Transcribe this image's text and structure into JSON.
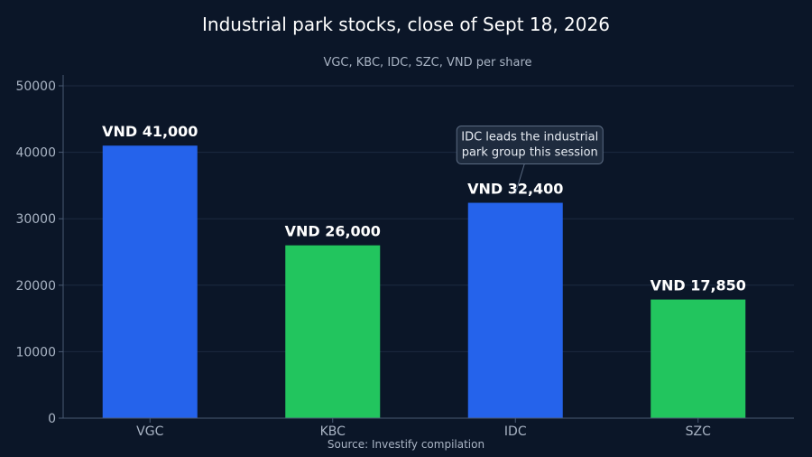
{
  "chart_data": {
    "type": "bar",
    "title": "Industrial park stocks, close of Sept 18, 2026",
    "subtitle": "VGC, KBC, IDC, SZC, VND per share",
    "source": "Source: Investify compilation",
    "categories": [
      "VGC",
      "KBC",
      "IDC",
      "SZC"
    ],
    "values": [
      41000,
      26000,
      32400,
      17850
    ],
    "value_labels": [
      "VND 41,000",
      "VND 26,000",
      "VND 32,400",
      "VND 17,850"
    ],
    "bar_colors": [
      "#2563eb",
      "#22c55e",
      "#2563eb",
      "#22c55e"
    ],
    "ylim": [
      0,
      50000
    ],
    "yticks": [
      0,
      10000,
      20000,
      30000,
      40000,
      50000
    ],
    "ytick_labels": [
      "0",
      "10000",
      "20000",
      "30000",
      "40000",
      "50000"
    ],
    "xlabel": "",
    "ylabel": "",
    "grid": true,
    "annotation": {
      "category": "IDC",
      "lines": [
        "IDC leads the industrial",
        "park group this session"
      ]
    }
  },
  "colors": {
    "background": "#0b1628",
    "grid": "#1c2a40",
    "axis": "#4a5a72",
    "tick_text": "#a9b4c4",
    "title": "#ffffff",
    "subtitle": "#a9b4c4",
    "value_label": "#ffffff",
    "annotation_bg": "#1e2b3e",
    "annotation_border": "#5b6b82",
    "annotation_text": "#e6ebf2"
  }
}
